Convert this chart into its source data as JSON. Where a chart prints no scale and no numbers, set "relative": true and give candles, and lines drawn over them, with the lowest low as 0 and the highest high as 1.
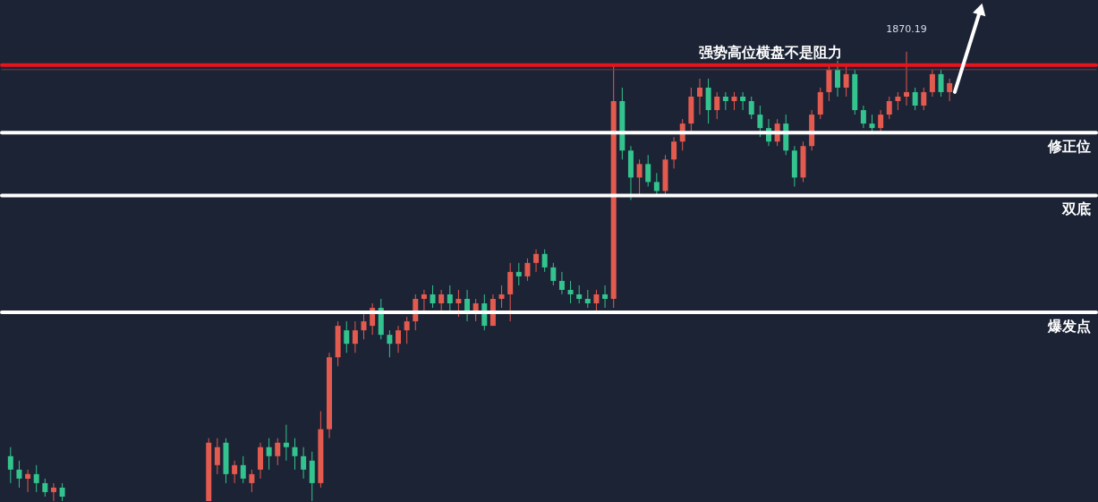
{
  "chart_data": {
    "type": "candlestick",
    "relative": true,
    "categories": [
      null,
      null,
      null,
      null,
      null,
      null,
      null,
      null,
      null,
      null,
      null,
      null,
      null,
      null,
      null,
      null,
      null,
      null,
      null,
      null,
      null,
      null,
      null,
      null,
      null,
      null,
      null,
      null,
      null,
      null,
      null,
      null,
      null,
      null,
      null,
      null,
      null,
      null,
      null,
      null,
      null,
      null,
      null,
      null,
      null,
      null,
      null,
      null,
      null,
      null,
      null,
      null,
      null,
      null,
      null,
      null,
      null,
      null,
      null,
      null,
      null,
      null,
      null,
      null,
      null,
      null,
      null,
      null,
      null,
      null,
      null,
      null,
      null,
      null,
      null,
      null,
      null,
      null,
      null,
      null,
      null,
      null,
      null,
      null,
      null,
      null,
      null,
      null,
      null,
      null,
      null,
      null,
      null,
      null,
      null,
      null,
      null,
      null,
      null,
      null,
      null,
      null,
      null,
      null,
      null,
      null,
      null,
      null,
      null,
      null,
      null,
      null,
      null,
      null,
      null,
      null,
      null,
      null,
      null,
      null,
      null,
      null,
      null,
      null,
      null,
      null
    ],
    "ohlc": [
      [
        0.1,
        0.12,
        0.04,
        0.07
      ],
      [
        0.07,
        0.09,
        0.03,
        0.05
      ],
      [
        0.05,
        0.07,
        0.02,
        0.06
      ],
      [
        0.06,
        0.08,
        0.02,
        0.04
      ],
      [
        0.04,
        0.05,
        0.01,
        0.02
      ],
      [
        0.02,
        0.04,
        0.0,
        0.03
      ],
      [
        0.03,
        0.04,
        0.0,
        0.01
      ],
      null,
      null,
      null,
      null,
      null,
      null,
      null,
      null,
      null,
      null,
      null,
      null,
      null,
      null,
      null,
      null,
      [
        0.0,
        0.14,
        0.0,
        0.13
      ],
      [
        0.08,
        0.14,
        0.06,
        0.12
      ],
      [
        0.13,
        0.14,
        0.04,
        0.06
      ],
      [
        0.06,
        0.09,
        0.04,
        0.08
      ],
      [
        0.08,
        0.1,
        0.04,
        0.05
      ],
      [
        0.04,
        0.07,
        0.02,
        0.06
      ],
      [
        0.07,
        0.13,
        0.05,
        0.12
      ],
      [
        0.12,
        0.14,
        0.07,
        0.1
      ],
      [
        0.1,
        0.14,
        0.08,
        0.13
      ],
      [
        0.13,
        0.17,
        0.09,
        0.12
      ],
      [
        0.12,
        0.14,
        0.07,
        0.1
      ],
      [
        0.1,
        0.12,
        0.05,
        0.07
      ],
      [
        0.09,
        0.11,
        0.0,
        0.04
      ],
      [
        0.04,
        0.2,
        0.03,
        0.16
      ],
      [
        0.16,
        0.33,
        0.14,
        0.32
      ],
      [
        0.32,
        0.4,
        0.3,
        0.39
      ],
      [
        0.38,
        0.4,
        0.33,
        0.35
      ],
      [
        0.35,
        0.4,
        0.33,
        0.38
      ],
      [
        0.38,
        0.42,
        0.36,
        0.4
      ],
      [
        0.39,
        0.44,
        0.37,
        0.43
      ],
      [
        0.43,
        0.45,
        0.36,
        0.37
      ],
      [
        0.37,
        0.38,
        0.32,
        0.35
      ],
      [
        0.35,
        0.39,
        0.33,
        0.38
      ],
      [
        0.38,
        0.41,
        0.35,
        0.4
      ],
      [
        0.4,
        0.46,
        0.38,
        0.45
      ],
      [
        0.45,
        0.47,
        0.42,
        0.46
      ],
      [
        0.46,
        0.48,
        0.43,
        0.44
      ],
      [
        0.44,
        0.47,
        0.42,
        0.46
      ],
      [
        0.46,
        0.48,
        0.42,
        0.44
      ],
      [
        0.44,
        0.47,
        0.41,
        0.45
      ],
      [
        0.45,
        0.47,
        0.4,
        0.42
      ],
      [
        0.42,
        0.45,
        0.4,
        0.44
      ],
      [
        0.44,
        0.46,
        0.38,
        0.39
      ],
      [
        0.39,
        0.46,
        0.39,
        0.45
      ],
      [
        0.45,
        0.48,
        0.43,
        0.46
      ],
      [
        0.46,
        0.53,
        0.4,
        0.51
      ],
      [
        0.51,
        0.53,
        0.48,
        0.5
      ],
      [
        0.5,
        0.54,
        0.49,
        0.53
      ],
      [
        0.53,
        0.56,
        0.51,
        0.55
      ],
      [
        0.55,
        0.56,
        0.51,
        0.52
      ],
      [
        0.52,
        0.53,
        0.48,
        0.49
      ],
      [
        0.49,
        0.51,
        0.46,
        0.47
      ],
      [
        0.47,
        0.49,
        0.44,
        0.46
      ],
      [
        0.46,
        0.48,
        0.44,
        0.45
      ],
      [
        0.45,
        0.47,
        0.43,
        0.44
      ],
      [
        0.44,
        0.47,
        0.42,
        0.46
      ],
      [
        0.46,
        0.48,
        0.43,
        0.45
      ],
      [
        0.45,
        0.97,
        0.43,
        0.89
      ],
      [
        0.89,
        0.92,
        0.76,
        0.78
      ],
      [
        0.78,
        0.79,
        0.67,
        0.72
      ],
      [
        0.72,
        0.76,
        0.68,
        0.75
      ],
      [
        0.75,
        0.77,
        0.7,
        0.71
      ],
      [
        0.71,
        0.73,
        0.68,
        0.69
      ],
      [
        0.69,
        0.77,
        0.68,
        0.76
      ],
      [
        0.76,
        0.81,
        0.74,
        0.8
      ],
      [
        0.8,
        0.85,
        0.78,
        0.84
      ],
      [
        0.84,
        0.92,
        0.82,
        0.9
      ],
      [
        0.9,
        0.94,
        0.86,
        0.92
      ],
      [
        0.92,
        0.94,
        0.84,
        0.87
      ],
      [
        0.87,
        0.91,
        0.85,
        0.9
      ],
      [
        0.9,
        0.91,
        0.87,
        0.89
      ],
      [
        0.89,
        0.91,
        0.87,
        0.9
      ],
      [
        0.9,
        0.91,
        0.87,
        0.89
      ],
      [
        0.89,
        0.9,
        0.85,
        0.86
      ],
      [
        0.86,
        0.88,
        0.81,
        0.83
      ],
      [
        0.83,
        0.85,
        0.79,
        0.8
      ],
      [
        0.8,
        0.85,
        0.79,
        0.84
      ],
      [
        0.84,
        0.86,
        0.77,
        0.78
      ],
      [
        0.78,
        0.79,
        0.7,
        0.72
      ],
      [
        0.72,
        0.8,
        0.71,
        0.79
      ],
      [
        0.79,
        0.87,
        0.78,
        0.86
      ],
      [
        0.86,
        0.92,
        0.85,
        0.91
      ],
      [
        0.91,
        0.97,
        0.89,
        0.96
      ],
      [
        0.96,
        0.98,
        0.9,
        0.92
      ],
      [
        0.92,
        0.97,
        0.9,
        0.95
      ],
      [
        0.95,
        0.96,
        0.86,
        0.87
      ],
      [
        0.87,
        0.88,
        0.83,
        0.84
      ],
      [
        0.84,
        0.86,
        0.82,
        0.83
      ],
      [
        0.83,
        0.87,
        0.82,
        0.86
      ],
      [
        0.86,
        0.9,
        0.85,
        0.89
      ],
      [
        0.89,
        0.91,
        0.87,
        0.9
      ],
      [
        0.9,
        1.0,
        0.88,
        0.91
      ],
      [
        0.91,
        0.92,
        0.87,
        0.88
      ],
      [
        0.88,
        0.92,
        0.87,
        0.91
      ],
      [
        0.91,
        0.96,
        0.9,
        0.95
      ],
      [
        0.95,
        0.96,
        0.9,
        0.91
      ],
      [
        0.91,
        0.94,
        0.89,
        0.93
      ],
      null,
      null,
      null,
      null,
      null,
      null,
      null,
      null,
      null,
      null,
      null,
      null,
      null,
      null,
      null,
      null
    ],
    "ref_lines": [
      {
        "axis": "y",
        "value": 0.97,
        "label": "强势高位横盘不是阻力",
        "color": "#e8141b"
      },
      {
        "axis": "y",
        "value": 0.96,
        "label": null,
        "color": "#7a3b42"
      },
      {
        "axis": "y",
        "value": 0.82,
        "label": "修正位",
        "color": "#ffffff"
      },
      {
        "axis": "y",
        "value": 0.68,
        "label": "双底",
        "color": "#ffffff"
      },
      {
        "axis": "y",
        "value": 0.42,
        "label": "爆发点",
        "color": "#ffffff"
      }
    ],
    "annotations": [
      "1870.19"
    ]
  }
}
